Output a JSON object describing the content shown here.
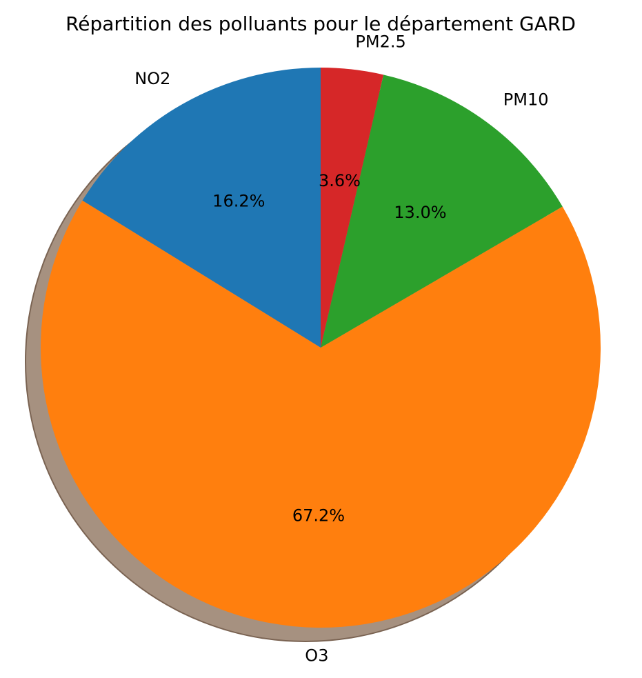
{
  "chart_data": {
    "type": "pie",
    "title": "Répartition des polluants pour le département GARD",
    "categories": [
      "NO2",
      "O3",
      "PM10",
      "PM2.5"
    ],
    "values": [
      16.2,
      67.2,
      13.0,
      3.6
    ],
    "value_labels": [
      "16.2%",
      "67.2%",
      "13.0%",
      "3.6%"
    ],
    "colors": [
      "#1f77b4",
      "#ff7f0e",
      "#2ca02c",
      "#d62728"
    ],
    "start_angle_deg": 90,
    "direction": "counterclockwise",
    "shadow": true,
    "legend": "none"
  }
}
